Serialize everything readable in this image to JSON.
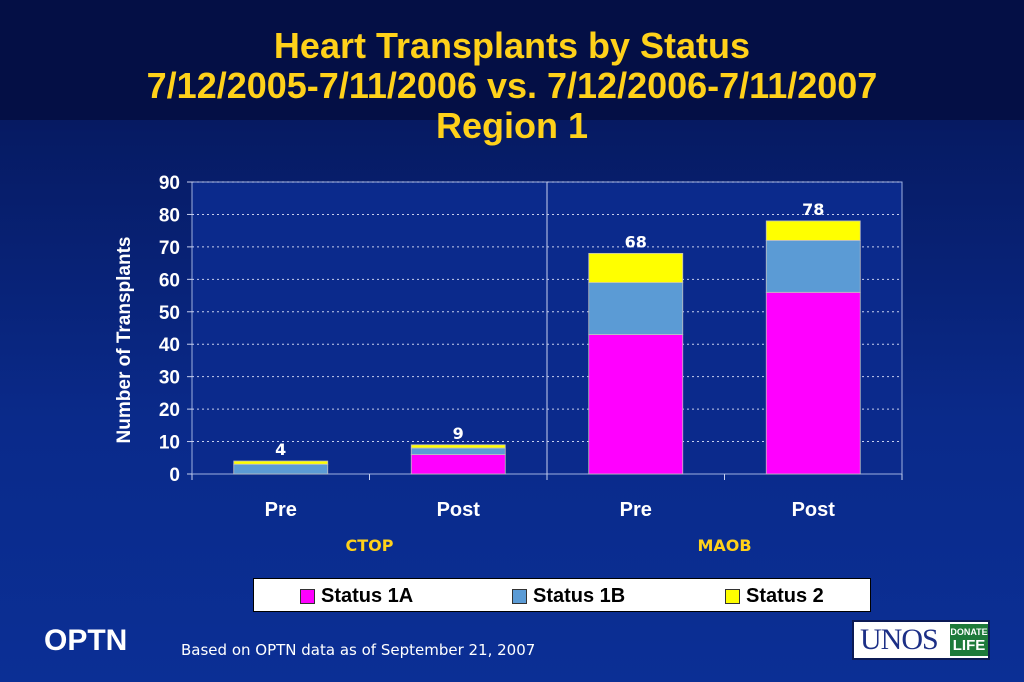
{
  "title": {
    "line1": "Heart Transplants by Status",
    "line2": "7/12/2005-7/11/2006 vs. 7/12/2006-7/11/2007",
    "line3": "Region 1"
  },
  "colors": {
    "status_1a": "#ff00ff",
    "status_1b": "#5b9bd5",
    "status_2": "#ffff00",
    "title": "#ffd11a",
    "group_label": "#ffd11a"
  },
  "chart_data": {
    "type": "bar",
    "stacked": true,
    "ylabel": "Number of Transplants",
    "ylim": [
      0,
      90
    ],
    "yticks": [
      0,
      10,
      20,
      30,
      40,
      50,
      60,
      70,
      80,
      90
    ],
    "grid": true,
    "categories": [
      "Pre",
      "Post",
      "Pre",
      "Post"
    ],
    "groups": [
      {
        "label": "CTOP",
        "categories": [
          0,
          1
        ]
      },
      {
        "label": "MAOB",
        "categories": [
          2,
          3
        ]
      }
    ],
    "series": [
      {
        "name": "Status 1A",
        "values": [
          0,
          6,
          43,
          56
        ]
      },
      {
        "name": "Status 1B",
        "values": [
          3,
          2,
          16,
          16
        ]
      },
      {
        "name": "Status 2",
        "values": [
          1,
          1,
          9,
          6
        ]
      }
    ],
    "totals": [
      "4",
      "9",
      "68",
      "78"
    ],
    "legend": "bottom"
  },
  "footer": {
    "brand": "OPTN",
    "note": "Based on OPTN data as of  September 21, 2007",
    "logo_text": "UNOS",
    "logo_badge_top": "DONATE",
    "logo_badge_bottom": "LIFE"
  }
}
